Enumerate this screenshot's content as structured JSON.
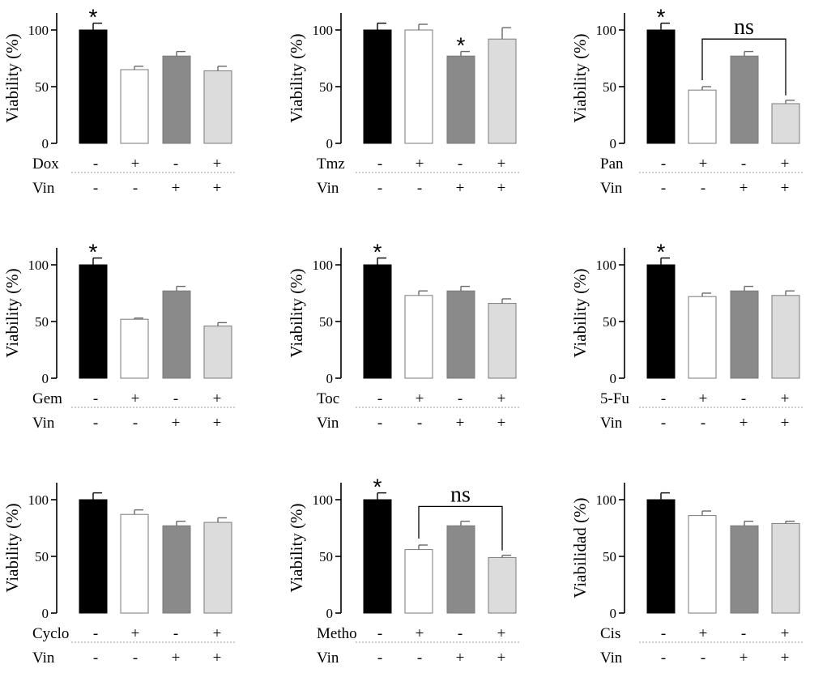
{
  "chart_data": [
    {
      "type": "bar",
      "ylabel": "Viability (%)",
      "drug": "Dox",
      "cotreatment": "Vin",
      "drug_signs": [
        "-",
        "+",
        "-",
        "+"
      ],
      "vin_signs": [
        "-",
        "-",
        "+",
        "+"
      ],
      "values": [
        100,
        65,
        77,
        64
      ],
      "errors": [
        6,
        3,
        4,
        4
      ],
      "colors": [
        "#000000",
        "#ffffff",
        "#8a8a8a",
        "#dcdcdc"
      ],
      "yticks": [
        0,
        50,
        100
      ],
      "ylim": [
        0,
        115
      ],
      "significance": [
        {
          "bar": 0,
          "text": "*"
        }
      ],
      "bracket": null
    },
    {
      "type": "bar",
      "ylabel": "Viability (%)",
      "drug": "Tmz",
      "cotreatment": "Vin",
      "drug_signs": [
        "-",
        "+",
        "-",
        "+"
      ],
      "vin_signs": [
        "-",
        "-",
        "+",
        "+"
      ],
      "values": [
        100,
        100,
        77,
        92
      ],
      "errors": [
        6,
        5,
        4,
        10
      ],
      "colors": [
        "#000000",
        "#ffffff",
        "#8a8a8a",
        "#dcdcdc"
      ],
      "yticks": [
        0,
        50,
        100
      ],
      "ylim": [
        0,
        115
      ],
      "significance": [
        {
          "bar": 2,
          "text": "*"
        }
      ],
      "bracket": null
    },
    {
      "type": "bar",
      "ylabel": "Viability (%)",
      "drug": "Pan",
      "cotreatment": "Vin",
      "drug_signs": [
        "-",
        "+",
        "-",
        "+"
      ],
      "vin_signs": [
        "-",
        "-",
        "+",
        "+"
      ],
      "values": [
        100,
        47,
        77,
        35
      ],
      "errors": [
        6,
        3,
        4,
        3
      ],
      "colors": [
        "#000000",
        "#ffffff",
        "#8a8a8a",
        "#dcdcdc"
      ],
      "yticks": [
        0,
        50,
        100
      ],
      "ylim": [
        0,
        115
      ],
      "significance": [
        {
          "bar": 0,
          "text": "*"
        }
      ],
      "bracket": {
        "from": 1,
        "to": 3,
        "level": 92,
        "text": "ns"
      }
    },
    {
      "type": "bar",
      "ylabel": "Viability (%)",
      "drug": "Gem",
      "cotreatment": "Vin",
      "drug_signs": [
        "-",
        "+",
        "-",
        "+"
      ],
      "vin_signs": [
        "-",
        "-",
        "+",
        "+"
      ],
      "values": [
        100,
        52,
        77,
        46
      ],
      "errors": [
        6,
        1,
        4,
        3
      ],
      "colors": [
        "#000000",
        "#ffffff",
        "#8a8a8a",
        "#dcdcdc"
      ],
      "yticks": [
        0,
        50,
        100
      ],
      "ylim": [
        0,
        115
      ],
      "significance": [
        {
          "bar": 0,
          "text": "*"
        }
      ],
      "bracket": null
    },
    {
      "type": "bar",
      "ylabel": "Viability (%)",
      "drug": "Toc",
      "cotreatment": "Vin",
      "drug_signs": [
        "-",
        "+",
        "-",
        "+"
      ],
      "vin_signs": [
        "-",
        "-",
        "+",
        "+"
      ],
      "values": [
        100,
        73,
        77,
        66
      ],
      "errors": [
        6,
        4,
        4,
        4
      ],
      "colors": [
        "#000000",
        "#ffffff",
        "#8a8a8a",
        "#dcdcdc"
      ],
      "yticks": [
        0,
        50,
        100
      ],
      "ylim": [
        0,
        115
      ],
      "significance": [
        {
          "bar": 0,
          "text": "*"
        }
      ],
      "bracket": null
    },
    {
      "type": "bar",
      "ylabel": "Viability (%)",
      "drug": "5-Fu",
      "cotreatment": "Vin",
      "drug_signs": [
        "-",
        "+",
        "-",
        "+"
      ],
      "vin_signs": [
        "-",
        "-",
        "+",
        "+"
      ],
      "values": [
        100,
        72,
        77,
        73
      ],
      "errors": [
        6,
        3,
        4,
        4
      ],
      "colors": [
        "#000000",
        "#ffffff",
        "#8a8a8a",
        "#dcdcdc"
      ],
      "yticks": [
        0,
        50,
        100
      ],
      "ylim": [
        0,
        115
      ],
      "significance": [
        {
          "bar": 0,
          "text": "*"
        }
      ],
      "bracket": null
    },
    {
      "type": "bar",
      "ylabel": "Viability (%)",
      "drug": "Cyclo",
      "cotreatment": "Vin",
      "drug_signs": [
        "-",
        "+",
        "-",
        "+"
      ],
      "vin_signs": [
        "-",
        "-",
        "+",
        "+"
      ],
      "values": [
        100,
        87,
        77,
        80
      ],
      "errors": [
        6,
        4,
        4,
        4
      ],
      "colors": [
        "#000000",
        "#ffffff",
        "#8a8a8a",
        "#dcdcdc"
      ],
      "yticks": [
        0,
        50,
        100
      ],
      "ylim": [
        0,
        115
      ],
      "significance": [],
      "bracket": null
    },
    {
      "type": "bar",
      "ylabel": "Viability (%)",
      "drug": "Metho",
      "cotreatment": "Vin",
      "drug_signs": [
        "-",
        "+",
        "-",
        "+"
      ],
      "vin_signs": [
        "-",
        "-",
        "+",
        "+"
      ],
      "values": [
        100,
        56,
        77,
        49
      ],
      "errors": [
        6,
        4,
        4,
        2
      ],
      "colors": [
        "#000000",
        "#ffffff",
        "#8a8a8a",
        "#dcdcdc"
      ],
      "yticks": [
        0,
        50,
        100
      ],
      "ylim": [
        0,
        115
      ],
      "significance": [
        {
          "bar": 0,
          "text": "*"
        }
      ],
      "bracket": {
        "from": 1,
        "to": 3,
        "level": 94,
        "text": "ns"
      }
    },
    {
      "type": "bar",
      "ylabel": "Viabilidad (%)",
      "drug": "Cis",
      "cotreatment": "Vin",
      "drug_signs": [
        "-",
        "+",
        "-",
        "+"
      ],
      "vin_signs": [
        "-",
        "-",
        "+",
        "+"
      ],
      "values": [
        100,
        86,
        77,
        79
      ],
      "errors": [
        6,
        4,
        4,
        2
      ],
      "colors": [
        "#000000",
        "#ffffff",
        "#8a8a8a",
        "#dcdcdc"
      ],
      "yticks": [
        0,
        50,
        100
      ],
      "ylim": [
        0,
        115
      ],
      "significance": [],
      "bracket": null
    }
  ]
}
